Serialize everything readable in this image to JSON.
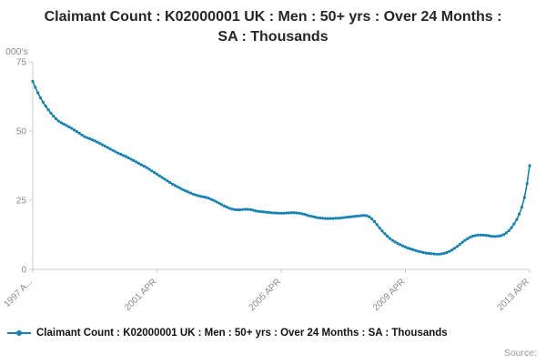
{
  "chart_data": {
    "type": "line",
    "title": "Claimant Count : K02000001 UK : Men : 50+ yrs : Over 24 Months : SA : Thousands",
    "unit_label": "000's",
    "source_label": "Source:",
    "ylim": [
      0,
      75
    ],
    "y_ticks": [
      0,
      25,
      50,
      75
    ],
    "x_range": [
      "1997 APR",
      "2013 APR"
    ],
    "frequency": "monthly",
    "x_tick_labels": [
      "1997 A...",
      "2001 APR",
      "2005 APR",
      "2009 APR",
      "2013 APR"
    ],
    "x_tick_positions": [
      0,
      48,
      96,
      144,
      192
    ],
    "grid": false,
    "legend_position": "bottom",
    "colors": {
      "line": "#1681b3",
      "axis": "#cccccc",
      "tick_text": "#8a8a8a",
      "title_text": "#262626"
    },
    "series": [
      {
        "name": "Claimant Count : K02000001 UK : Men : 50+ yrs : Over 24 Months : SA : Thousands",
        "color": "#1681b3",
        "values": [
          68,
          65.8,
          63.8,
          62,
          60.4,
          59,
          57.7,
          56.5,
          55.4,
          54.4,
          53.6,
          53,
          52.5,
          52,
          51.5,
          51,
          50.4,
          49.8,
          49.2,
          48.6,
          48,
          47.6,
          47.2,
          46.8,
          46.4,
          46,
          45.5,
          45,
          44.5,
          44,
          43.5,
          43,
          42.5,
          42,
          41.6,
          41.2,
          40.8,
          40.3,
          39.8,
          39.3,
          38.8,
          38.3,
          37.8,
          37.3,
          36.8,
          36.2,
          35.6,
          35,
          34.4,
          33.8,
          33.2,
          32.6,
          32,
          31.4,
          30.8,
          30.3,
          29.8,
          29.3,
          28.8,
          28.4,
          28,
          27.6,
          27.2,
          26.9,
          26.6,
          26.4,
          26.2,
          26,
          25.7,
          25.3,
          24.9,
          24.4,
          23.9,
          23.4,
          22.9,
          22.5,
          22.1,
          21.8,
          21.6,
          21.5,
          21.5,
          21.6,
          21.7,
          21.7,
          21.6,
          21.4,
          21.2,
          21,
          20.9,
          20.8,
          20.7,
          20.6,
          20.5,
          20.4,
          20.4,
          20.3,
          20.3,
          20.3,
          20.4,
          20.4,
          20.5,
          20.5,
          20.4,
          20.3,
          20.1,
          19.9,
          19.6,
          19.3,
          19.1,
          18.9,
          18.7,
          18.6,
          18.5,
          18.4,
          18.4,
          18.4,
          18.4,
          18.5,
          18.5,
          18.6,
          18.7,
          18.8,
          18.9,
          19,
          19.1,
          19.2,
          19.3,
          19.4,
          19.5,
          19.4,
          19,
          18.3,
          17.3,
          16.2,
          15,
          13.9,
          12.9,
          12,
          11.2,
          10.5,
          9.9,
          9.4,
          8.9,
          8.5,
          8.1,
          7.7,
          7.4,
          7.1,
          6.8,
          6.5,
          6.3,
          6.1,
          5.9,
          5.8,
          5.7,
          5.6,
          5.5,
          5.5,
          5.6,
          5.8,
          6.1,
          6.5,
          7,
          7.6,
          8.3,
          9,
          9.8,
          10.5,
          11.1,
          11.6,
          12,
          12.2,
          12.4,
          12.4,
          12.4,
          12.3,
          12.2,
          12,
          11.9,
          11.9,
          12,
          12.2,
          12.6,
          13.2,
          14,
          15.1,
          16.4,
          18,
          20,
          22.5,
          26,
          31,
          37.5
        ]
      }
    ]
  }
}
